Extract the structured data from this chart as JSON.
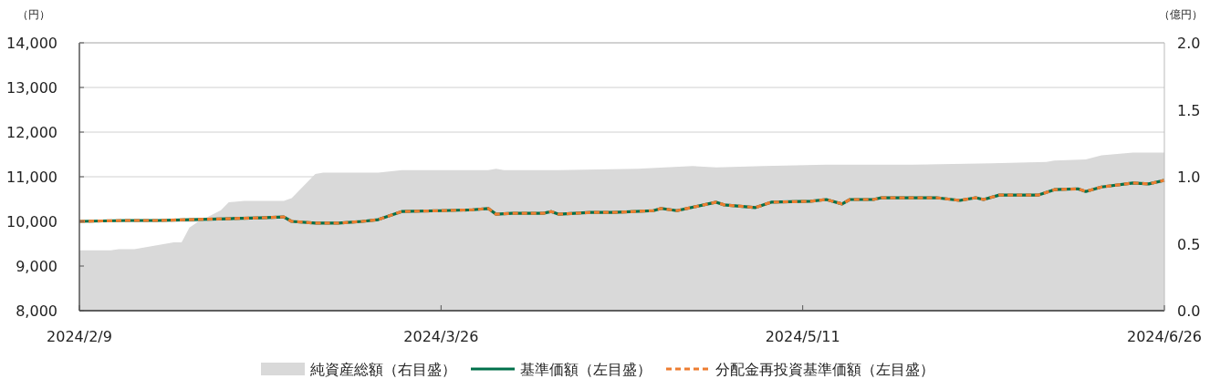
{
  "chart_data": {
    "type": "line",
    "ylabel": "（円）",
    "y2label": "（億円）",
    "xlim": [
      "2024-02-09",
      "2024-06-26"
    ],
    "xticks": [
      {
        "value": "2024-02-09",
        "label": "2024/2/9"
      },
      {
        "value": "2024-03-26",
        "label": "2024/3/26"
      },
      {
        "value": "2024-05-11",
        "label": "2024/5/11"
      },
      {
        "value": "2024-06-26",
        "label": "2024/6/26"
      }
    ],
    "ylim": [
      8000,
      14000
    ],
    "yticks": [
      {
        "value": 8000,
        "label": "8,000"
      },
      {
        "value": 9000,
        "label": "9,000"
      },
      {
        "value": 10000,
        "label": "10,000"
      },
      {
        "value": 11000,
        "label": "11,000"
      },
      {
        "value": 12000,
        "label": "12,000"
      },
      {
        "value": 13000,
        "label": "13,000"
      },
      {
        "value": 14000,
        "label": "14,000"
      }
    ],
    "y2lim": [
      0,
      2
    ],
    "y2ticks": [
      {
        "value": 0,
        "label": "0.0"
      },
      {
        "value": 0.5,
        "label": "0.5"
      },
      {
        "value": 1,
        "label": "1.0"
      },
      {
        "value": 1.5,
        "label": "1.5"
      },
      {
        "value": 2,
        "label": "2.0"
      }
    ],
    "grid": "y",
    "legend": "bottom",
    "series": [
      {
        "name": "純資産総額（右目盛）",
        "type": "area",
        "axis": "y2",
        "color": "#d9d9d9",
        "x": [
          "2024-02-09",
          "2024-02-13",
          "2024-02-14",
          "2024-02-16",
          "2024-02-18",
          "2024-02-20",
          "2024-02-21",
          "2024-02-22",
          "2024-02-23",
          "2024-02-24",
          "2024-02-27",
          "2024-02-28",
          "2024-03-01",
          "2024-03-06",
          "2024-03-07",
          "2024-03-10",
          "2024-03-11",
          "2024-03-18",
          "2024-03-21",
          "2024-04-01",
          "2024-04-02",
          "2024-04-03",
          "2024-04-10",
          "2024-04-20",
          "2024-04-27",
          "2024-04-30",
          "2024-05-06",
          "2024-05-14",
          "2024-05-25",
          "2024-06-04",
          "2024-06-11",
          "2024-06-12",
          "2024-06-16",
          "2024-06-18",
          "2024-06-22",
          "2024-06-26"
        ],
        "values": [
          0.45,
          0.45,
          0.46,
          0.46,
          0.48,
          0.5,
          0.51,
          0.51,
          0.62,
          0.66,
          0.75,
          0.81,
          0.82,
          0.82,
          0.84,
          1.02,
          1.03,
          1.03,
          1.05,
          1.05,
          1.06,
          1.05,
          1.05,
          1.06,
          1.08,
          1.07,
          1.08,
          1.09,
          1.09,
          1.1,
          1.11,
          1.12,
          1.13,
          1.16,
          1.18,
          1.18
        ]
      },
      {
        "name": "基準価額（左目盛）",
        "type": "line",
        "line_style": "solid",
        "color": "#00704a",
        "x": [
          "2024-02-09",
          "2024-02-15",
          "2024-02-19",
          "2024-02-23",
          "2024-02-28",
          "2024-03-03",
          "2024-03-06",
          "2024-03-07",
          "2024-03-10",
          "2024-03-13",
          "2024-03-16",
          "2024-03-18",
          "2024-03-21",
          "2024-03-26",
          "2024-03-30",
          "2024-04-01",
          "2024-04-02",
          "2024-04-04",
          "2024-04-08",
          "2024-04-09",
          "2024-04-10",
          "2024-04-14",
          "2024-04-17",
          "2024-04-22",
          "2024-04-23",
          "2024-04-25",
          "2024-04-30",
          "2024-05-01",
          "2024-05-05",
          "2024-05-07",
          "2024-05-12",
          "2024-05-14",
          "2024-05-16",
          "2024-05-17",
          "2024-05-20",
          "2024-05-21",
          "2024-05-28",
          "2024-05-31",
          "2024-06-02",
          "2024-06-03",
          "2024-06-05",
          "2024-06-10",
          "2024-06-12",
          "2024-06-15",
          "2024-06-16",
          "2024-06-18",
          "2024-06-22",
          "2024-06-24",
          "2024-06-26"
        ],
        "values": [
          10000,
          10020,
          10020,
          10040,
          10060,
          10080,
          10100,
          10000,
          9960,
          9960,
          10000,
          10040,
          10220,
          10240,
          10260,
          10290,
          10160,
          10180,
          10180,
          10220,
          10160,
          10200,
          10200,
          10240,
          10290,
          10240,
          10430,
          10370,
          10310,
          10430,
          10450,
          10490,
          10390,
          10490,
          10490,
          10530,
          10530,
          10470,
          10530,
          10490,
          10590,
          10590,
          10710,
          10730,
          10670,
          10770,
          10860,
          10840,
          10920
        ]
      },
      {
        "name": "分配金再投資基準価額（左目盛）",
        "type": "line",
        "line_style": "dashed",
        "color": "#ed7d31",
        "x": [
          "2024-02-09",
          "2024-02-15",
          "2024-02-19",
          "2024-02-23",
          "2024-02-28",
          "2024-03-03",
          "2024-03-06",
          "2024-03-07",
          "2024-03-10",
          "2024-03-13",
          "2024-03-16",
          "2024-03-18",
          "2024-03-21",
          "2024-03-26",
          "2024-03-30",
          "2024-04-01",
          "2024-04-02",
          "2024-04-04",
          "2024-04-08",
          "2024-04-09",
          "2024-04-10",
          "2024-04-14",
          "2024-04-17",
          "2024-04-22",
          "2024-04-23",
          "2024-04-25",
          "2024-04-30",
          "2024-05-01",
          "2024-05-05",
          "2024-05-07",
          "2024-05-12",
          "2024-05-14",
          "2024-05-16",
          "2024-05-17",
          "2024-05-20",
          "2024-05-21",
          "2024-05-28",
          "2024-05-31",
          "2024-06-02",
          "2024-06-03",
          "2024-06-05",
          "2024-06-10",
          "2024-06-12",
          "2024-06-15",
          "2024-06-16",
          "2024-06-18",
          "2024-06-22",
          "2024-06-24",
          "2024-06-26"
        ],
        "values": [
          10000,
          10020,
          10020,
          10040,
          10060,
          10080,
          10100,
          10000,
          9960,
          9960,
          10000,
          10040,
          10220,
          10240,
          10260,
          10290,
          10160,
          10180,
          10180,
          10220,
          10160,
          10200,
          10200,
          10240,
          10290,
          10240,
          10430,
          10370,
          10310,
          10430,
          10450,
          10490,
          10390,
          10490,
          10490,
          10530,
          10530,
          10470,
          10530,
          10490,
          10590,
          10590,
          10710,
          10730,
          10670,
          10770,
          10860,
          10840,
          10920
        ]
      }
    ]
  }
}
